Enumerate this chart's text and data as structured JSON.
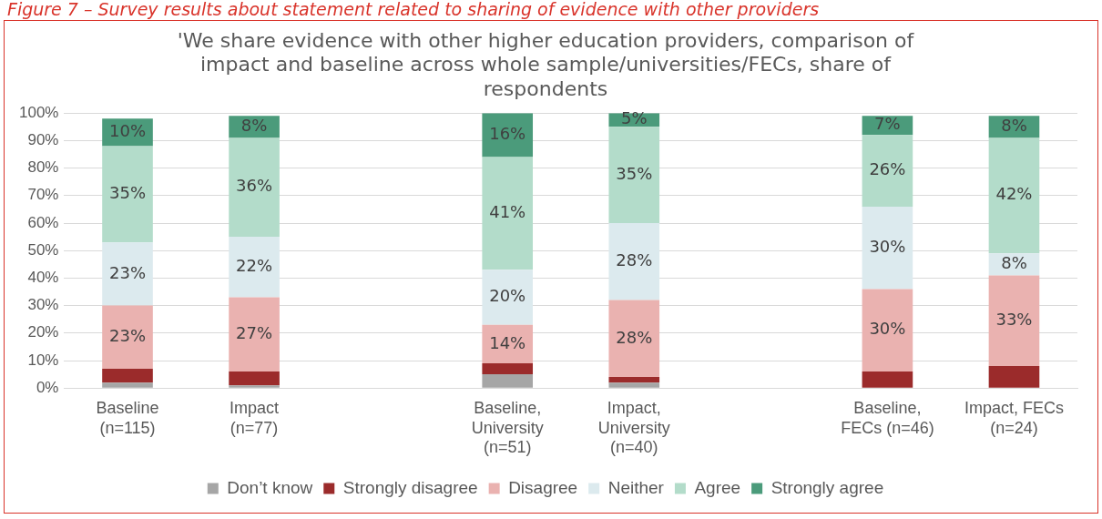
{
  "chart_data": {
    "type": "bar",
    "stacked": true,
    "title": "'We share evidence with other higher education providers, comparison of impact and baseline across whole sample/universities/FECs, share of respondents",
    "annotations": [
      "Figure 7 – Survey results about statement related to sharing of evidence with other providers"
    ],
    "categories": [
      "Baseline (n=115)",
      "Impact (n=77)",
      null,
      "Baseline, University (n=51)",
      "Impact, University (n=40)",
      null,
      "Baseline, FECs (n=46)",
      "Impact, FECs (n=24)"
    ],
    "series": [
      {
        "name": "Don’t know",
        "color": "#a6a6a6",
        "values": [
          2,
          1,
          null,
          5,
          2,
          null,
          0,
          0
        ],
        "value_labels": [
          null,
          null,
          null,
          null,
          null,
          null,
          null,
          null
        ]
      },
      {
        "name": "Strongly disagree",
        "color": "#9b2b2b",
        "values": [
          5,
          5,
          null,
          4,
          2,
          null,
          6,
          8
        ],
        "value_labels": [
          null,
          null,
          null,
          null,
          null,
          null,
          null,
          null
        ]
      },
      {
        "name": "Disagree",
        "color": "#eab2b0",
        "values": [
          23,
          27,
          null,
          14,
          28,
          null,
          30,
          33
        ],
        "value_labels": [
          "23%",
          "27%",
          null,
          "14%",
          "28%",
          null,
          "30%",
          "33%"
        ]
      },
      {
        "name": "Neither",
        "color": "#dceaee",
        "values": [
          23,
          22,
          null,
          20,
          28,
          null,
          30,
          8
        ],
        "value_labels": [
          "23%",
          "22%",
          null,
          "20%",
          "28%",
          null,
          "30%",
          "8%"
        ]
      },
      {
        "name": "Agree",
        "color": "#b3dcca",
        "values": [
          35,
          36,
          null,
          41,
          35,
          null,
          26,
          42
        ],
        "value_labels": [
          "35%",
          "36%",
          null,
          "41%",
          "35%",
          null,
          "26%",
          "42%"
        ]
      },
      {
        "name": "Strongly agree",
        "color": "#4b9b7b",
        "values": [
          10,
          8,
          null,
          16,
          5,
          null,
          7,
          8
        ],
        "value_labels": [
          "10%",
          "8%",
          null,
          "16%",
          "5%",
          null,
          "7%",
          "8%"
        ]
      }
    ],
    "ylim": [
      0,
      100
    ],
    "yticks": [
      {
        "value": 0,
        "label": "0%"
      },
      {
        "value": 10,
        "label": "10%"
      },
      {
        "value": 20,
        "label": "20%"
      },
      {
        "value": 30,
        "label": "30%"
      },
      {
        "value": 40,
        "label": "40%"
      },
      {
        "value": 50,
        "label": "50%"
      },
      {
        "value": 60,
        "label": "60%"
      },
      {
        "value": 70,
        "label": "70%"
      },
      {
        "value": 80,
        "label": "80%"
      },
      {
        "value": 90,
        "label": "90%"
      },
      {
        "value": 100,
        "label": "100%"
      }
    ],
    "grid": "y",
    "legend": "bottom"
  }
}
